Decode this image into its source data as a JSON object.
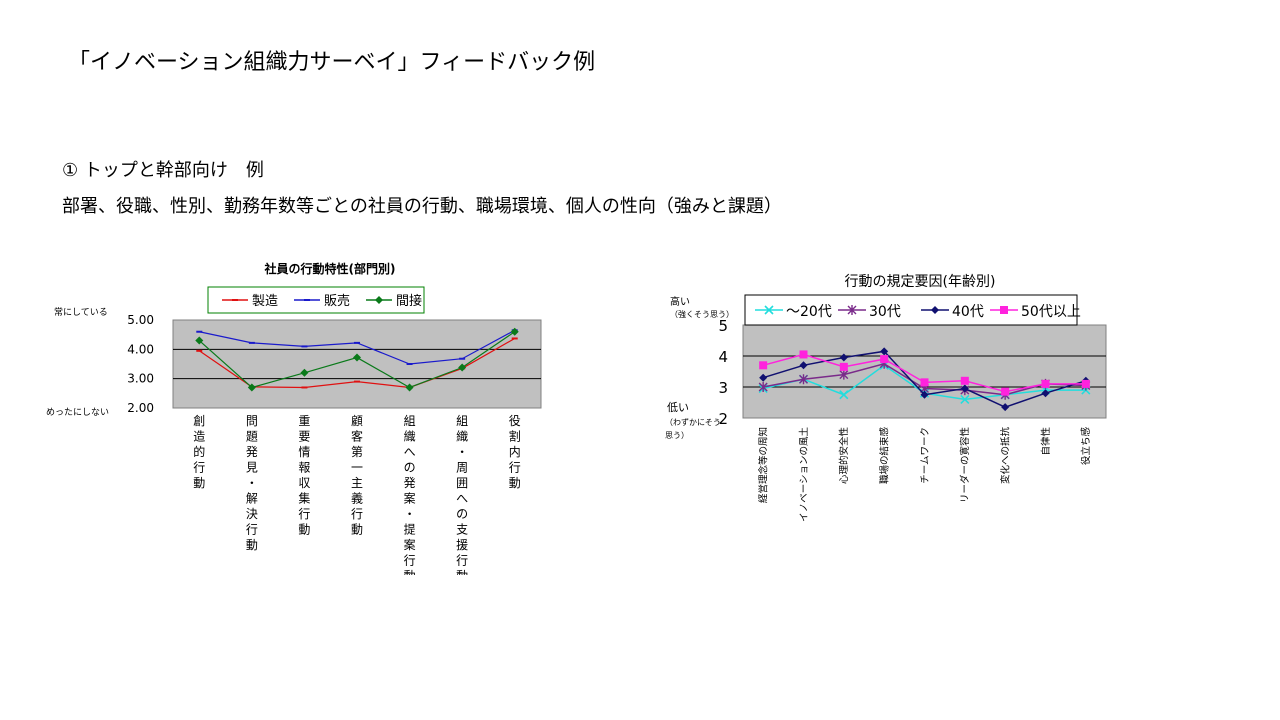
{
  "slide": {
    "title": "「イノベーション組織力サーベイ」フィードバック例",
    "line1": "①  トップと幹部向け　例",
    "line2": "部署、役職、性別、勤務年数等ごとの社員の行動、職場環境、個人の性向（強みと課題）"
  },
  "chart_data": [
    {
      "type": "line",
      "title": "社員の行動特性(部門別)",
      "ylabel_top": "常にしている",
      "ylabel_bottom": "めったにしない",
      "ylim": [
        2.0,
        5.0
      ],
      "yticks": [
        "5.00",
        "4.00",
        "3.00",
        "2.00"
      ],
      "categories": [
        "創造的行動",
        "問題発見・解決行動",
        "重要情報収集行動",
        "顧客第一主義行動",
        "組織への発案・提案行動",
        "組織・周囲への支援行動",
        "役割内行動"
      ],
      "series": [
        {
          "name": "製造",
          "color": "#e01010",
          "values": [
            3.95,
            2.72,
            2.7,
            2.9,
            2.7,
            3.35,
            4.37
          ]
        },
        {
          "name": "販売",
          "color": "#1a1acc",
          "values": [
            4.6,
            4.22,
            4.1,
            4.22,
            3.5,
            3.68,
            4.65
          ]
        },
        {
          "name": "間接",
          "color": "#0a7a1a",
          "values": [
            4.3,
            2.7,
            3.2,
            3.72,
            2.7,
            3.38,
            4.6
          ]
        }
      ]
    },
    {
      "type": "line",
      "title": "行動の規定要因(年齢別)",
      "ylabel_top": "高い（強くそう思う）",
      "ylabel_bottom": "低い（わずかにそう思う）",
      "ylim": [
        2,
        5
      ],
      "yticks": [
        "5",
        "4",
        "3",
        "2"
      ],
      "categories": [
        "経営理念等の周知",
        "イノベーションの風土",
        "心理的安全性",
        "職場の結束感",
        "チームワーク",
        "リーダーの寛容性",
        "変化への抵抗",
        "自律性",
        "役立ち感"
      ],
      "series": [
        {
          "name": "～20代",
          "color": "#22dddd",
          "values": [
            2.95,
            3.25,
            2.75,
            3.7,
            2.8,
            2.6,
            2.75,
            2.9,
            2.9
          ]
        },
        {
          "name": "30代",
          "color": "#7a2a8a",
          "values": [
            3.0,
            3.25,
            3.4,
            3.75,
            2.95,
            2.9,
            2.75,
            3.1,
            3.05
          ]
        },
        {
          "name": "40代",
          "color": "#101070",
          "values": [
            3.3,
            3.7,
            3.95,
            4.15,
            2.75,
            2.95,
            2.35,
            2.8,
            3.2
          ]
        },
        {
          "name": "50代以上",
          "color": "#ff22dd",
          "values": [
            3.7,
            4.05,
            3.65,
            3.9,
            3.15,
            3.2,
            2.85,
            3.1,
            3.1
          ]
        }
      ]
    }
  ]
}
